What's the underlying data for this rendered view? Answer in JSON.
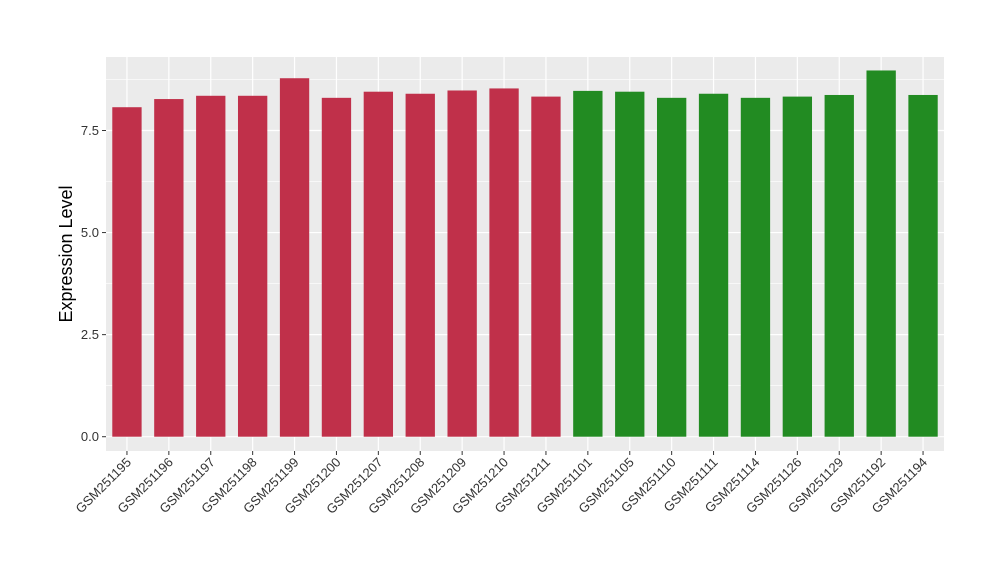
{
  "chart_data": {
    "type": "bar",
    "title": "",
    "xlabel": "",
    "ylabel": "Expression Level",
    "ylim": [
      -0.35,
      9.3
    ],
    "yticks": [
      0.0,
      2.5,
      5.0,
      7.5
    ],
    "ytick_labels": [
      "0.0",
      "2.5",
      "5.0",
      "7.5"
    ],
    "grid": true,
    "legend": "none",
    "categories": [
      "GSM251195",
      "GSM251196",
      "GSM251197",
      "GSM251198",
      "GSM251199",
      "GSM251200",
      "GSM251207",
      "GSM251208",
      "GSM251209",
      "GSM251210",
      "GSM251211",
      "GSM251101",
      "GSM251105",
      "GSM251110",
      "GSM251111",
      "GSM251114",
      "GSM251126",
      "GSM251129",
      "GSM251192",
      "GSM251194"
    ],
    "values": [
      8.07,
      8.27,
      8.35,
      8.35,
      8.78,
      8.3,
      8.45,
      8.4,
      8.48,
      8.53,
      8.33,
      8.47,
      8.45,
      8.3,
      8.4,
      8.3,
      8.33,
      8.37,
      8.97,
      8.37
    ],
    "colors": [
      "#c0304a",
      "#c0304a",
      "#c0304a",
      "#c0304a",
      "#c0304a",
      "#c0304a",
      "#c0304a",
      "#c0304a",
      "#c0304a",
      "#c0304a",
      "#c0304a",
      "#228b22",
      "#228b22",
      "#228b22",
      "#228b22",
      "#228b22",
      "#228b22",
      "#228b22",
      "#228b22",
      "#228b22"
    ],
    "panel_background": "#ebebeb",
    "gridline_color": "#ffffff"
  }
}
